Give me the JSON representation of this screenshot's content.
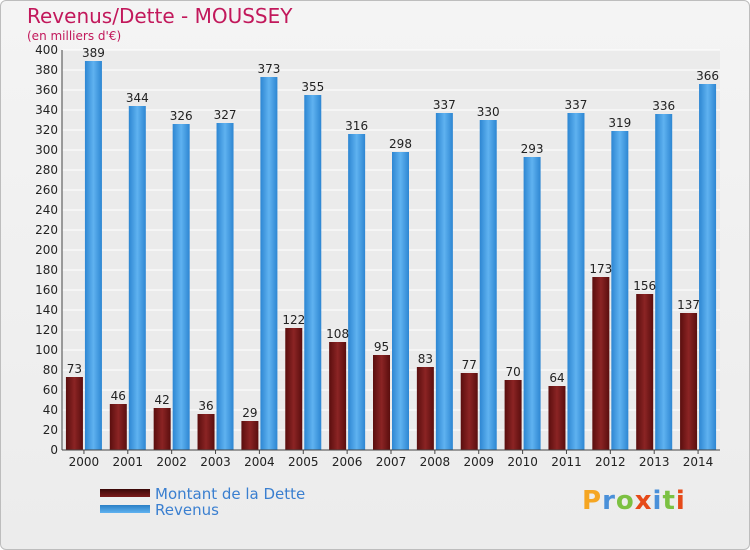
{
  "title": "Revenus/Dette - MOUSSEY",
  "subtitle": "(en milliers d'€)",
  "logo": {
    "text": "Proxiti",
    "letters": [
      "P",
      "r",
      "o",
      "x",
      "i",
      "t",
      "i"
    ],
    "colors": [
      "#f5a623",
      "#4a90d9",
      "#7cc142",
      "#e64a19",
      "#4a90d9",
      "#7cc142",
      "#e64a19"
    ]
  },
  "legend": [
    {
      "label": "Montant de la Dette",
      "color": "#7a1a1a"
    },
    {
      "label": "Revenus",
      "color": "#3c9be6"
    }
  ],
  "chart_data": {
    "type": "bar",
    "title": "Revenus/Dette - MOUSSEY",
    "ylabel": "(en milliers d'€)",
    "categories": [
      "2000",
      "2001",
      "2002",
      "2003",
      "2004",
      "2005",
      "2006",
      "2007",
      "2008",
      "2009",
      "2010",
      "2011",
      "2012",
      "2013",
      "2014"
    ],
    "series": [
      {
        "name": "Montant de la Dette",
        "color": "#7a1a1a",
        "values": [
          73,
          46,
          42,
          36,
          29,
          122,
          108,
          95,
          83,
          77,
          70,
          64,
          173,
          156,
          137
        ]
      },
      {
        "name": "Revenus",
        "color": "#3c9be6",
        "values": [
          389,
          344,
          326,
          327,
          373,
          355,
          316,
          298,
          337,
          330,
          293,
          337,
          319,
          336,
          366
        ]
      }
    ],
    "ylim": [
      0,
      400
    ],
    "ytick_step": 20,
    "grid": true,
    "legend_position": "bottom-left"
  }
}
